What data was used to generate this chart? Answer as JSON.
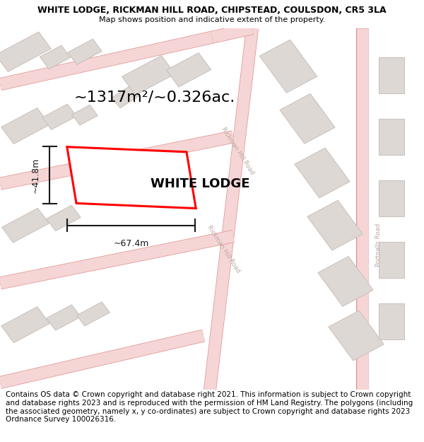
{
  "title": "WHITE LODGE, RICKMAN HILL ROAD, CHIPSTEAD, COULSDON, CR5 3LA",
  "subtitle": "Map shows position and indicative extent of the property.",
  "area_text": "~1317m²/~0.326ac.",
  "width_label": "~67.4m",
  "height_label": "~41.8m",
  "property_label": "WHITE LODGE",
  "footer_text": "Contains OS data © Crown copyright and database right 2021. This information is subject to Crown copyright and database rights 2023 and is reproduced with the permission of HM Land Registry. The polygons (including the associated geometry, namely x, y co-ordinates) are subject to Crown copyright and database rights 2023 Ordnance Survey 100026316.",
  "map_bg": "#f2ece8",
  "road_edge_color": "#e09090",
  "road_fill_color": "#f5d5d5",
  "building_fill": "#ddd8d4",
  "building_edge": "#c8c0bc",
  "property_color": "#ff0000",
  "dim_color": "#1a1a1a",
  "road_text_color": "#b8a8a4",
  "title_fontsize": 9,
  "subtitle_fontsize": 8,
  "area_fontsize": 16,
  "property_label_fontsize": 13,
  "dim_fontsize": 9,
  "footer_fontsize": 7.5,
  "road_lw_fill": 12,
  "road_lw_edge": 13
}
